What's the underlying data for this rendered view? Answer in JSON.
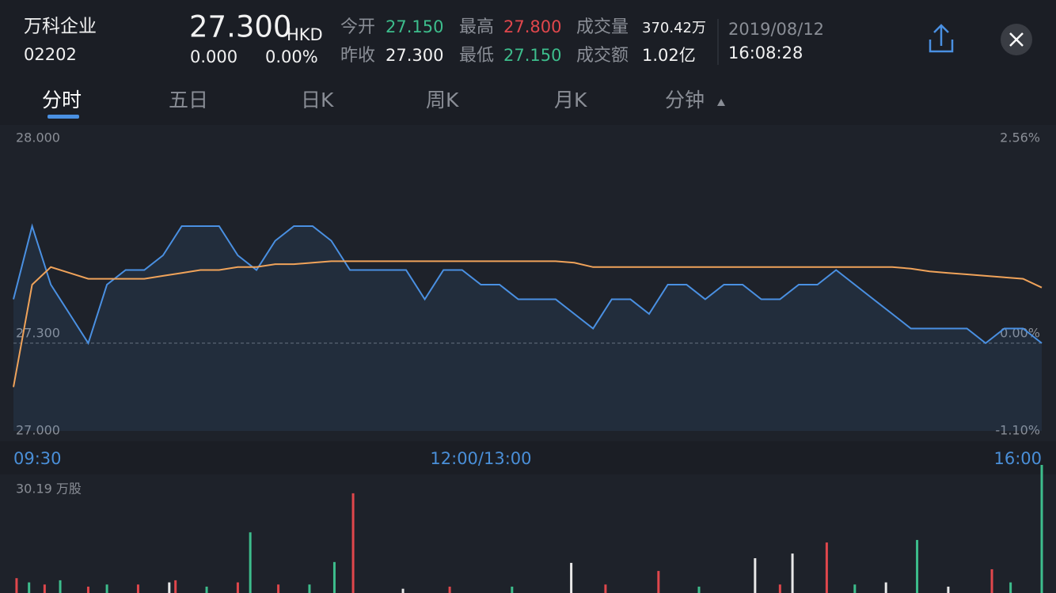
{
  "header": {
    "name": "万科企业",
    "code": "02202",
    "price": "27.300",
    "currency": "HKD",
    "change": "0.000",
    "change_pct": "0.00%",
    "date": "2019/08/12",
    "time": "16:08:28"
  },
  "stats": {
    "open_label": "今开",
    "open": "27.150",
    "high_label": "最高",
    "high": "27.800",
    "volume_label": "成交量",
    "volume": "370.42万",
    "prev_close_label": "昨收",
    "prev_close": "27.300",
    "low_label": "最低",
    "low": "27.150",
    "amount_label": "成交额",
    "amount": "1.02亿"
  },
  "tabs": [
    "分时",
    "五日",
    "日K",
    "周K",
    "月K",
    "分钟"
  ],
  "chart_data": [
    {
      "type": "line",
      "x": [
        0,
        6,
        12,
        18,
        24,
        30,
        36,
        42,
        48,
        54,
        60,
        66,
        72,
        78,
        84,
        90,
        96,
        102,
        108,
        114,
        120,
        126,
        132,
        138,
        144,
        150,
        156,
        162,
        168,
        174,
        180,
        186,
        192,
        198,
        204,
        210,
        216,
        222,
        228,
        234,
        240,
        246,
        252,
        258,
        264,
        270,
        276,
        282,
        288,
        294,
        300,
        306,
        312,
        318,
        324,
        330
      ],
      "series": [
        {
          "color": "#4a90e2",
          "values": [
            27.45,
            27.7,
            27.5,
            27.4,
            27.3,
            27.5,
            27.55,
            27.55,
            27.6,
            27.7,
            27.7,
            27.7,
            27.6,
            27.55,
            27.65,
            27.7,
            27.7,
            27.65,
            27.55,
            27.55,
            27.55,
            27.55,
            27.45,
            27.55,
            27.55,
            27.5,
            27.5,
            27.45,
            27.45,
            27.45,
            27.4,
            27.35,
            27.45,
            27.45,
            27.4,
            27.5,
            27.5,
            27.45,
            27.5,
            27.5,
            27.45,
            27.45,
            27.5,
            27.5,
            27.55,
            27.5,
            27.45,
            27.4,
            27.35,
            27.35,
            27.35,
            27.35,
            27.3,
            27.35,
            27.35,
            27.3
          ]
        },
        {
          "color": "#f0a35a",
          "values": [
            27.15,
            27.5,
            27.56,
            27.54,
            27.52,
            27.52,
            27.52,
            27.52,
            27.53,
            27.54,
            27.55,
            27.55,
            27.56,
            27.56,
            27.57,
            27.57,
            27.575,
            27.58,
            27.58,
            27.58,
            27.58,
            27.58,
            27.58,
            27.58,
            27.58,
            27.58,
            27.58,
            27.58,
            27.58,
            27.58,
            27.575,
            27.56,
            27.56,
            27.56,
            27.56,
            27.56,
            27.56,
            27.56,
            27.56,
            27.56,
            27.56,
            27.56,
            27.56,
            27.56,
            27.56,
            27.56,
            27.56,
            27.56,
            27.555,
            27.545,
            27.54,
            27.535,
            27.53,
            27.525,
            27.52,
            27.49
          ]
        }
      ],
      "xlim": [
        0,
        330
      ],
      "xticks": [
        {
          "value": 0,
          "label": "09:30"
        },
        {
          "value": 150,
          "label": "12:00/13:00"
        },
        {
          "value": 330,
          "label": "16:00"
        }
      ],
      "ylim": [
        27,
        28
      ],
      "yticks": [
        {
          "value": 28,
          "label": "28.000"
        },
        {
          "value": 27.3,
          "label": "27.300"
        },
        {
          "value": 27,
          "label": "27.000"
        }
      ],
      "y2lim": [
        -1.1,
        2.56
      ],
      "y2ticks": [
        {
          "value": 2.56,
          "label": "2.56%"
        },
        {
          "value": 0,
          "label": "0.00%"
        },
        {
          "value": -1.1,
          "label": "-1.10%"
        }
      ]
    },
    {
      "type": "bar",
      "x": [
        1,
        5,
        10,
        15,
        24,
        30,
        40,
        50,
        52,
        62,
        72,
        76,
        85,
        95,
        103,
        109,
        125,
        140,
        160,
        179,
        190,
        207,
        220,
        238,
        246,
        250,
        261,
        270,
        280,
        290,
        300,
        314,
        320,
        330
      ],
      "values": [
        3.5,
        2.5,
        2,
        3,
        1.5,
        2,
        2,
        2.5,
        3,
        1.5,
        2.5,
        14.3,
        2,
        2,
        7.3,
        23.5,
        1,
        1.5,
        1.5,
        7.1,
        2,
        5.2,
        1.5,
        8.2,
        2,
        9.3,
        11.9,
        2,
        2.5,
        12.5,
        1.5,
        5.6,
        2.5,
        30.19
      ],
      "colors": [
        "#e0474c",
        "#3dbd8c",
        "#e0474c",
        "#3dbd8c",
        "#e0474c",
        "#3dbd8c",
        "#e0474c",
        "#e8e8e8",
        "#e0474c",
        "#3dbd8c",
        "#e0474c",
        "#3dbd8c",
        "#e0474c",
        "#3dbd8c",
        "#3dbd8c",
        "#e0474c",
        "#e8e8e8",
        "#e0474c",
        "#3dbd8c",
        "#e8e8e8",
        "#e0474c",
        "#e0474c",
        "#3dbd8c",
        "#e8e8e8",
        "#e0474c",
        "#e8e8e8",
        "#e0474c",
        "#3dbd8c",
        "#e8e8e8",
        "#3dbd8c",
        "#e8e8e8",
        "#e0474c",
        "#3dbd8c",
        "#3dbd8c"
      ],
      "xlim": [
        0,
        330
      ],
      "ylim": [
        0,
        30.19
      ],
      "yticks": [
        {
          "value": 30.19,
          "label": "30.19 万股"
        }
      ]
    }
  ]
}
